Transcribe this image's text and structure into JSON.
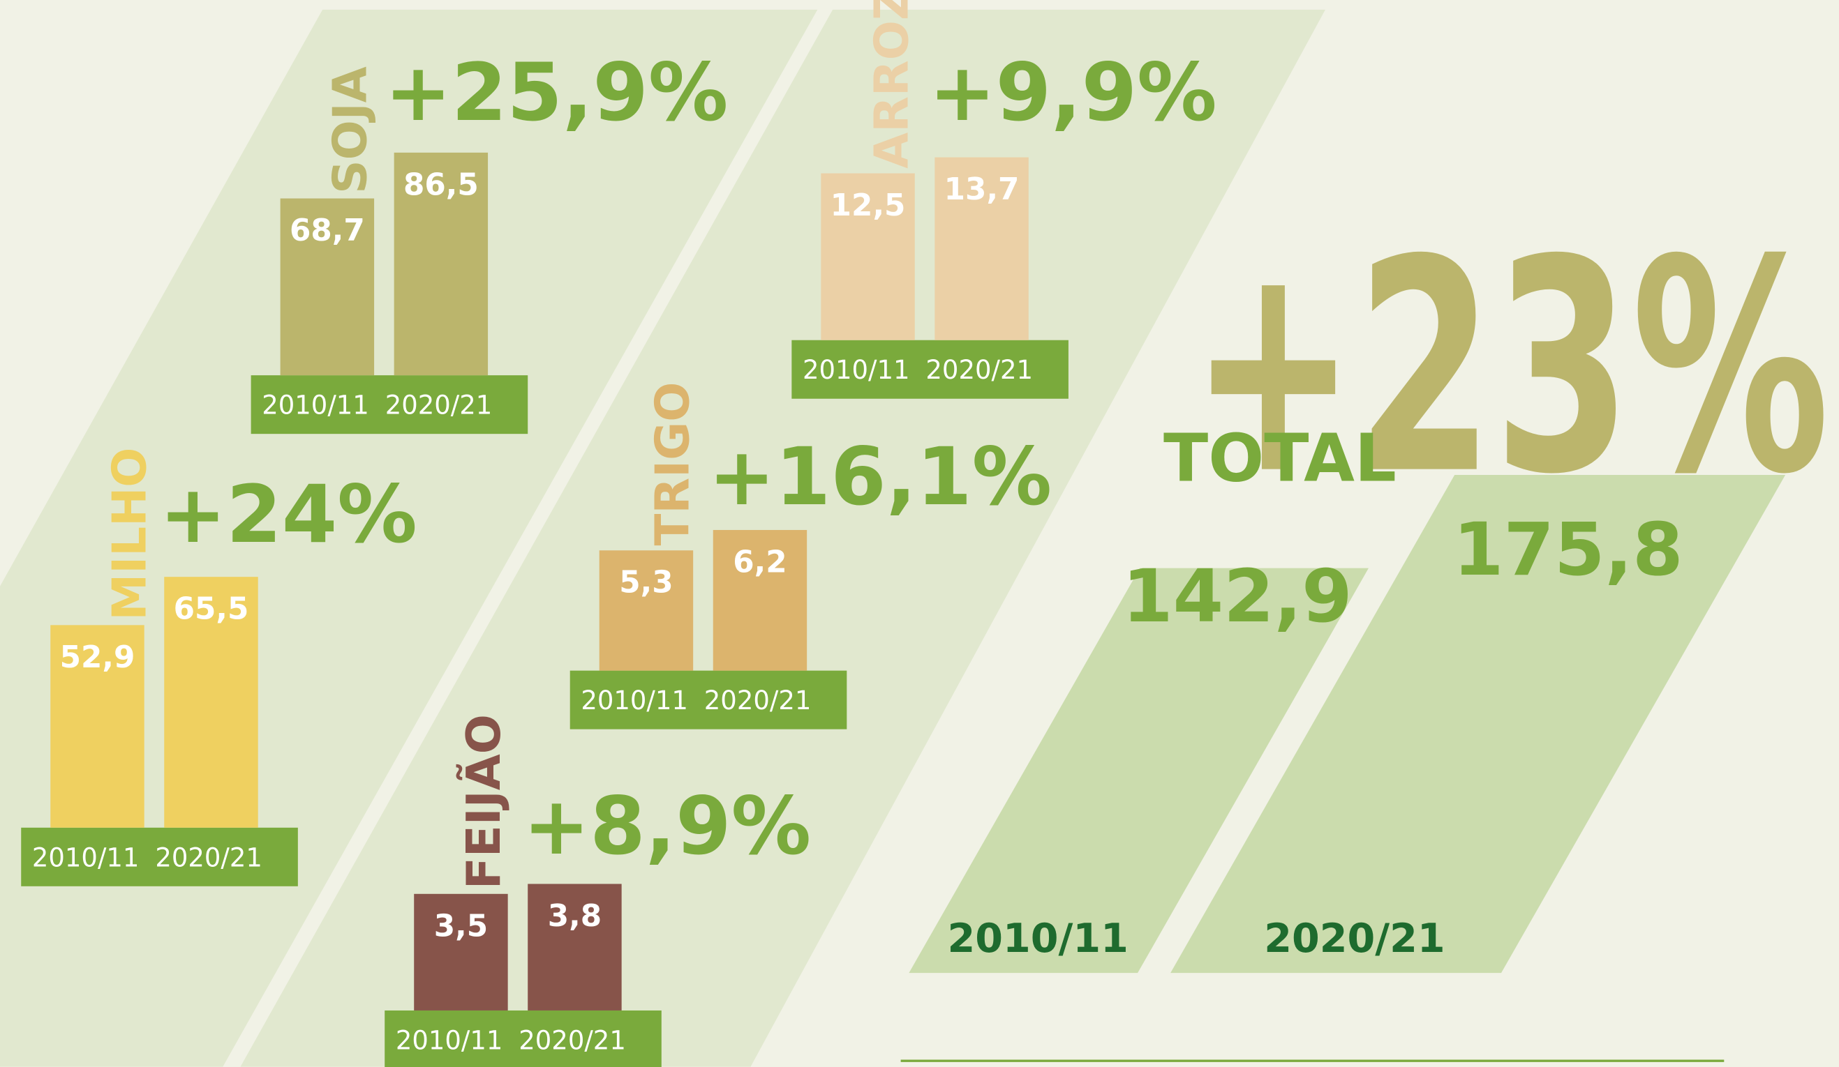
{
  "chart_data": [
    {
      "type": "bar",
      "title": "SOJA",
      "change": "+25,9%",
      "categories": [
        "2010/11",
        "2020/21"
      ],
      "values": [
        68.7,
        86.5
      ],
      "value_labels": [
        "68,7",
        "86,5"
      ],
      "color": "#bbb56c"
    },
    {
      "type": "bar",
      "title": "MILHO",
      "change": "+24%",
      "categories": [
        "2010/11",
        "2020/21"
      ],
      "values": [
        52.9,
        65.5
      ],
      "value_labels": [
        "52,9",
        "65,5"
      ],
      "color": "#efd060"
    },
    {
      "type": "bar",
      "title": "ARROZ",
      "change": "+9,9%",
      "categories": [
        "2010/11",
        "2020/21"
      ],
      "values": [
        12.5,
        13.7
      ],
      "value_labels": [
        "12,5",
        "13,7"
      ],
      "color": "#ebd0a6"
    },
    {
      "type": "bar",
      "title": "TRIGO",
      "change": "+16,1%",
      "categories": [
        "2010/11",
        "2020/21"
      ],
      "values": [
        5.3,
        6.2
      ],
      "value_labels": [
        "5,3",
        "6,2"
      ],
      "color": "#dcb46d"
    },
    {
      "type": "bar",
      "title": "FEIJÃO",
      "change": "+8,9%",
      "categories": [
        "2010/11",
        "2020/21"
      ],
      "values": [
        3.5,
        3.8
      ],
      "value_labels": [
        "3,5",
        "3,8"
      ],
      "color": "#87544a"
    },
    {
      "type": "slant-bar",
      "title": "TOTAL",
      "change": "+23%",
      "categories": [
        "2010/11",
        "2020/21"
      ],
      "values": [
        142.9,
        175.8
      ],
      "value_labels": [
        "142,9",
        "175,8"
      ],
      "color": "#cbdcad"
    }
  ]
}
